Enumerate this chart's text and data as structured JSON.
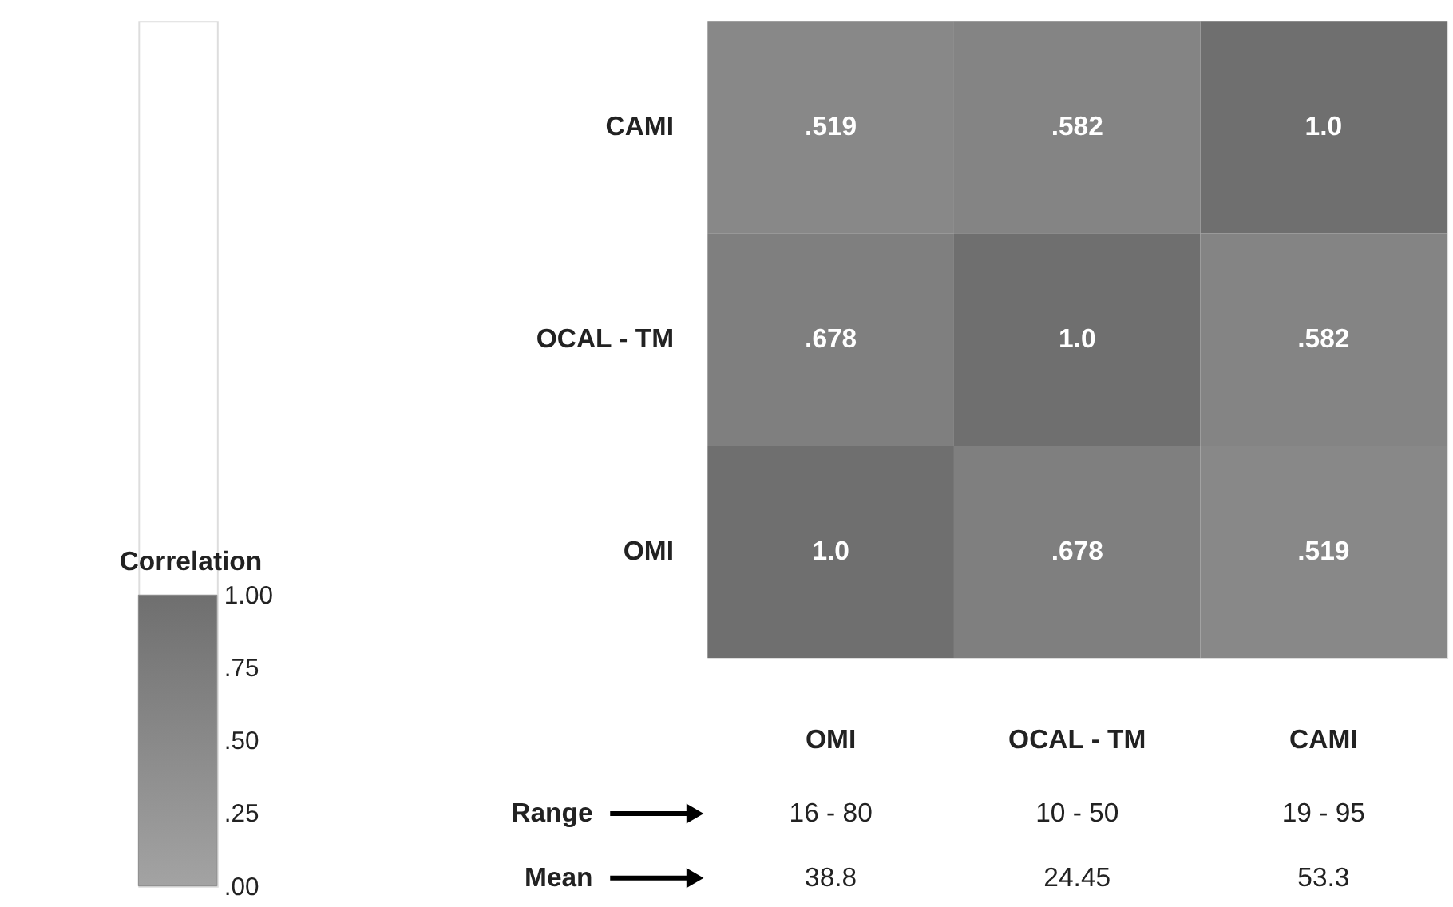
{
  "chart_data": {
    "type": "heatmap",
    "categories": [
      "OMI",
      "OCAL - TM",
      "CAMI"
    ],
    "y_categories": [
      "CAMI",
      "OCAL - TM",
      "OMI"
    ],
    "cells": [
      [
        0.519,
        0.582,
        1.0
      ],
      [
        0.678,
        1.0,
        0.582
      ],
      [
        1.0,
        0.678,
        0.519
      ]
    ],
    "cell_labels": [
      [
        ".519",
        ".582",
        "1.0"
      ],
      [
        ".678",
        "1.0",
        ".582"
      ],
      [
        "1.0",
        ".678",
        ".519"
      ]
    ],
    "clabel": "Correlation",
    "clim": [
      0,
      1
    ],
    "cticks": [
      {
        "value": 1,
        "label": "1.00"
      },
      {
        "value": 0.75,
        "label": ".75"
      },
      {
        "value": 0.5,
        "label": ".50"
      },
      {
        "value": 0.25,
        "label": ".25"
      },
      {
        "value": 0,
        "label": ".00"
      }
    ],
    "colors": [
      "#a3a3a3",
      "#6f6f6f"
    ],
    "annotations": [
      "Range",
      "Mean",
      "16 - 80",
      "10 - 50",
      "19 - 95",
      "38.8",
      "24.45",
      "53.3"
    ]
  }
}
